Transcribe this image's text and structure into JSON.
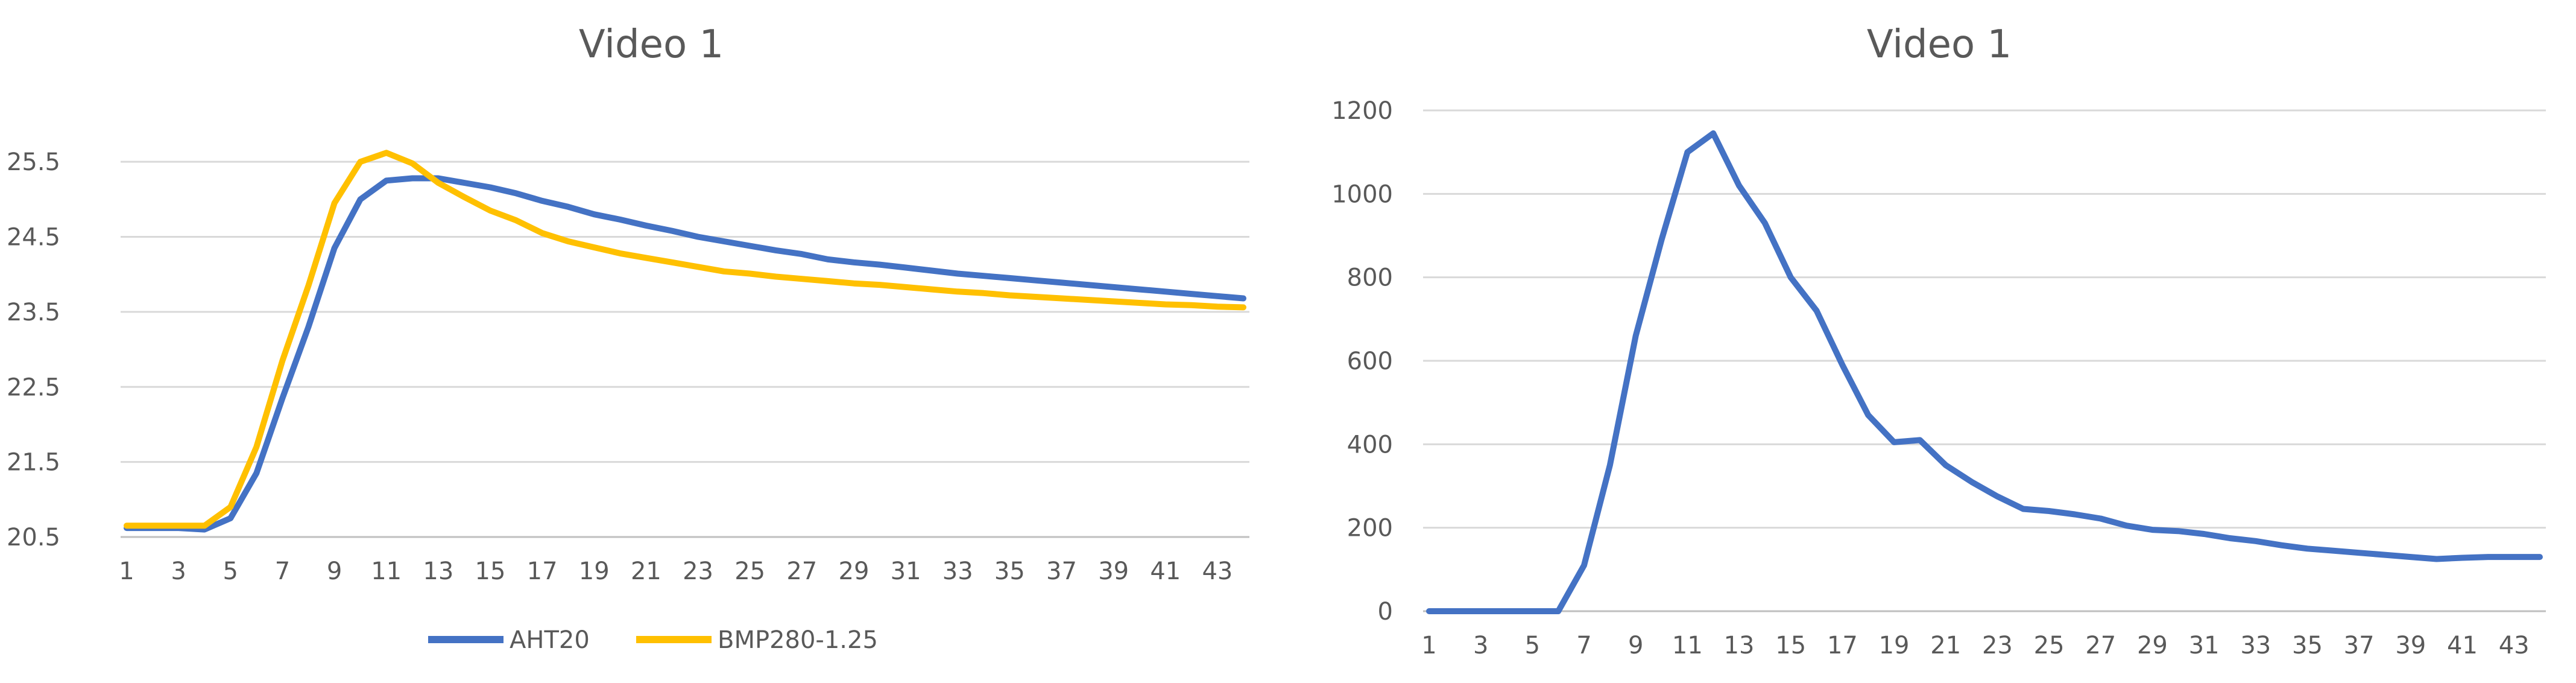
{
  "chart_data": [
    {
      "type": "line",
      "title": "Video 1",
      "xlabel": "",
      "ylabel": "",
      "x": [
        1,
        2,
        3,
        4,
        5,
        6,
        7,
        8,
        9,
        10,
        11,
        12,
        13,
        14,
        15,
        16,
        17,
        18,
        19,
        20,
        21,
        22,
        23,
        24,
        25,
        26,
        27,
        28,
        29,
        30,
        31,
        32,
        33,
        34,
        35,
        36,
        37,
        38,
        39,
        40,
        41,
        42,
        43,
        44
      ],
      "xtick_labels": [
        "1",
        "3",
        "5",
        "7",
        "9",
        "11",
        "13",
        "15",
        "17",
        "19",
        "21",
        "23",
        "25",
        "27",
        "29",
        "31",
        "33",
        "35",
        "37",
        "39",
        "41",
        "43"
      ],
      "ylim": [
        20.5,
        26
      ],
      "yticks": [
        "20.5",
        "21.5",
        "22.5",
        "23.5",
        "24.5",
        "25.5"
      ],
      "ytick_values": [
        20.5,
        21.5,
        22.5,
        23.5,
        24.5,
        25.5
      ],
      "grid": true,
      "legend_position": "bottom",
      "series": [
        {
          "name": "AHT20",
          "color": "#4472C4",
          "values": [
            20.62,
            20.62,
            20.62,
            20.6,
            20.75,
            21.35,
            22.35,
            23.3,
            24.35,
            25.0,
            25.25,
            25.28,
            25.28,
            25.22,
            25.16,
            25.08,
            24.98,
            24.9,
            24.8,
            24.73,
            24.65,
            24.58,
            24.5,
            24.44,
            24.38,
            24.32,
            24.27,
            24.2,
            24.16,
            24.13,
            24.09,
            24.05,
            24.01,
            23.98,
            23.95,
            23.92,
            23.89,
            23.86,
            23.83,
            23.8,
            23.77,
            23.74,
            23.71,
            23.68
          ]
        },
        {
          "name": "BMP280-1.25",
          "color": "#FFC000",
          "values": [
            20.65,
            20.65,
            20.65,
            20.65,
            20.9,
            21.7,
            22.85,
            23.85,
            24.95,
            25.5,
            25.62,
            25.48,
            25.22,
            25.03,
            24.85,
            24.72,
            24.55,
            24.44,
            24.36,
            24.28,
            24.22,
            24.16,
            24.1,
            24.04,
            24.01,
            23.97,
            23.94,
            23.91,
            23.88,
            23.86,
            23.83,
            23.8,
            23.77,
            23.75,
            23.72,
            23.7,
            23.68,
            23.66,
            23.64,
            23.62,
            23.6,
            23.59,
            23.57,
            23.56
          ]
        }
      ]
    },
    {
      "type": "line",
      "title": "Video 1",
      "xlabel": "",
      "ylabel": "",
      "x": [
        1,
        2,
        3,
        4,
        5,
        6,
        7,
        8,
        9,
        10,
        11,
        12,
        13,
        14,
        15,
        16,
        17,
        18,
        19,
        20,
        21,
        22,
        23,
        24,
        25,
        26,
        27,
        28,
        29,
        30,
        31,
        32,
        33,
        34,
        35,
        36,
        37,
        38,
        39,
        40,
        41,
        42,
        43,
        44
      ],
      "xtick_labels": [
        "1",
        "3",
        "5",
        "7",
        "9",
        "11",
        "13",
        "15",
        "17",
        "19",
        "21",
        "23",
        "25",
        "27",
        "29",
        "31",
        "33",
        "35",
        "37",
        "39",
        "41",
        "43"
      ],
      "ylim": [
        0,
        1200
      ],
      "yticks": [
        "0",
        "200",
        "400",
        "600",
        "800",
        "1000",
        "1200"
      ],
      "ytick_values": [
        0,
        200,
        400,
        600,
        800,
        1000,
        1200
      ],
      "grid": true,
      "series": [
        {
          "color": "#4472C4",
          "values": [
            0,
            0,
            0,
            0,
            0,
            0,
            110,
            350,
            660,
            890,
            1100,
            1145,
            1020,
            930,
            800,
            720,
            590,
            470,
            405,
            410,
            350,
            310,
            275,
            245,
            240,
            232,
            222,
            205,
            195,
            192,
            185,
            175,
            168,
            158,
            150,
            145,
            140,
            135,
            130,
            125,
            128,
            130,
            130,
            130
          ]
        }
      ]
    }
  ]
}
